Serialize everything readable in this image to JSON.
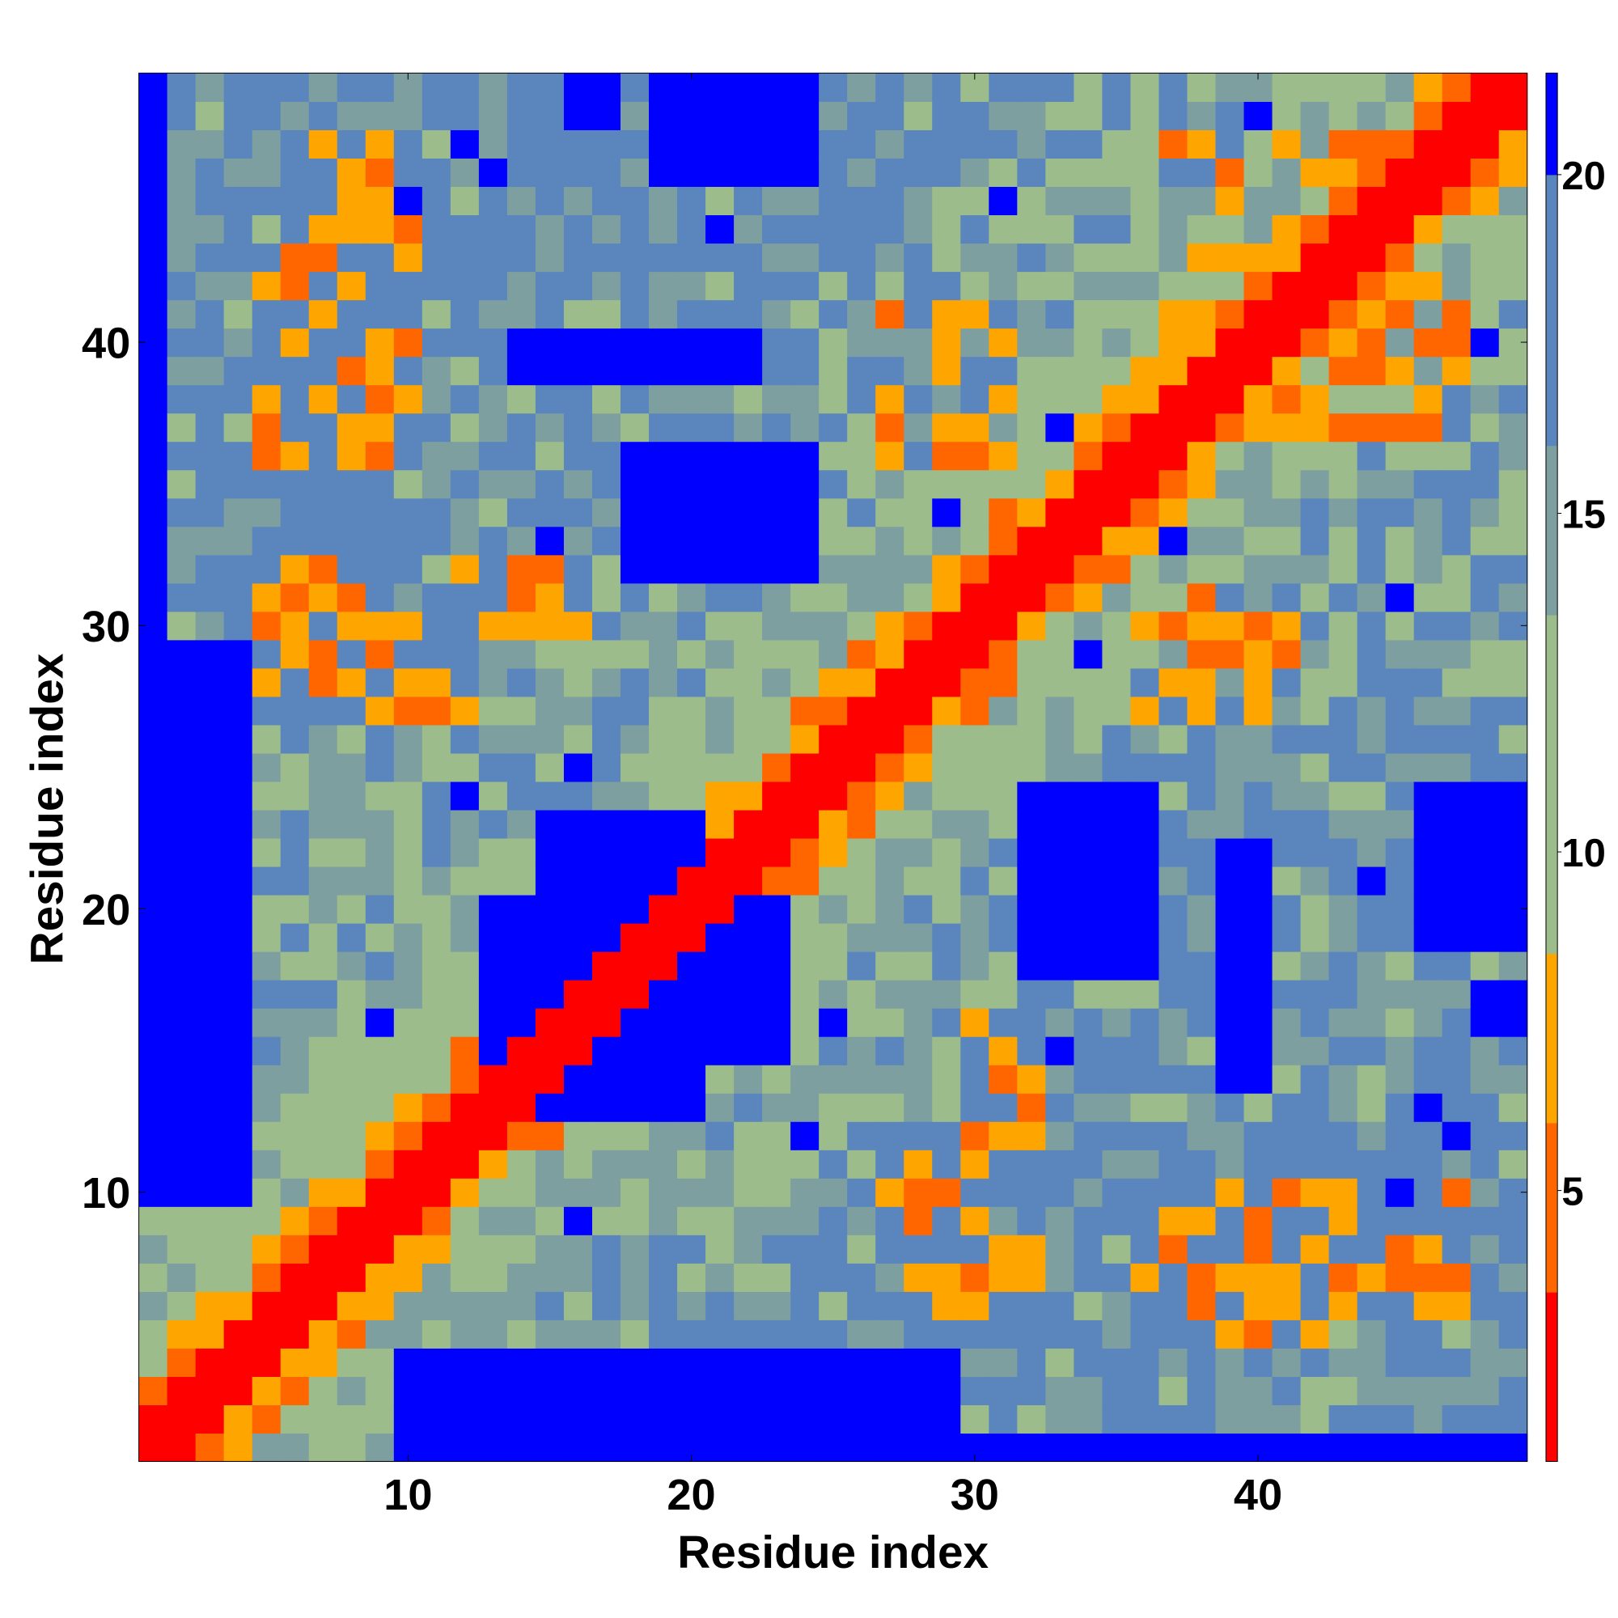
{
  "chart_data": {
    "type": "heatmap",
    "title": "",
    "xlabel": "Residue index",
    "ylabel": "Residue index",
    "x_range": [
      1,
      49
    ],
    "y_range": [
      1,
      49
    ],
    "x_ticks": [
      10,
      20,
      30,
      40
    ],
    "y_ticks": [
      10,
      20,
      30,
      40
    ],
    "grid": false,
    "colorbar": {
      "placement": "right",
      "range": [
        1,
        21.5
      ],
      "ticks": [
        5,
        10,
        15,
        20
      ],
      "bins": [
        {
          "min": 1,
          "max": 3.5,
          "color": "#ff0000"
        },
        {
          "min": 3.5,
          "max": 6,
          "color": "#ff6600"
        },
        {
          "min": 6,
          "max": 8.5,
          "color": "#ffa500"
        },
        {
          "min": 8.5,
          "max": 13.5,
          "color": "#9dbc8c"
        },
        {
          "min": 13.5,
          "max": 16,
          "color": "#7d9fa0"
        },
        {
          "min": 16,
          "max": 20,
          "color": "#5a86bd"
        },
        {
          "min": 20,
          "max": 21.5,
          "color": "#0000ff"
        }
      ]
    },
    "colors": {
      "diagonal": "#ff0000",
      "near": "#ff6600",
      "contact": "#ffa500",
      "mid": "#9dbc8c",
      "far_mid": "#7d9fa0",
      "far": "#5a86bd",
      "max": "#0000ff"
    }
  }
}
